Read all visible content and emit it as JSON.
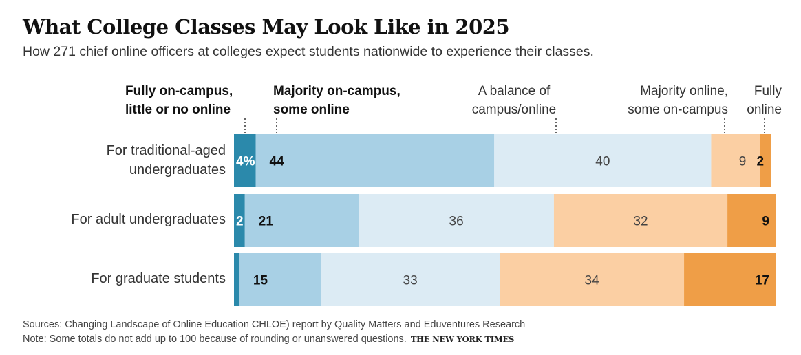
{
  "chart_data": {
    "type": "bar",
    "orientation": "horizontal-stacked-100",
    "title": "What College Classes May Look Like in 2025",
    "subtitle": "How 271 chief online officers at colleges expect students nationwide to experience their classes.",
    "categories": [
      [
        "For traditional-aged",
        "undergraduates"
      ],
      [
        "For adult undergraduates"
      ],
      [
        "For graduate students"
      ]
    ],
    "series": [
      {
        "name": "Fully on-campus, little or no online",
        "color": "#2b89ab",
        "values": [
          4,
          2,
          1
        ],
        "labels": [
          "4%",
          "2",
          ""
        ]
      },
      {
        "name": "Majority on-campus, some online",
        "color": "#a8d0e5",
        "values": [
          44,
          21,
          15
        ],
        "labels": [
          "44",
          "21",
          "15"
        ]
      },
      {
        "name": "A balance of campus/online",
        "color": "#dcebf4",
        "values": [
          40,
          36,
          33
        ],
        "labels": [
          "40",
          "36",
          "33"
        ]
      },
      {
        "name": "Majority online, some on-campus",
        "color": "#fbcfa3",
        "values": [
          9,
          32,
          34
        ],
        "labels": [
          "9",
          "32",
          "34"
        ]
      },
      {
        "name": "Fully online",
        "color": "#ef9e47",
        "values": [
          2,
          9,
          17
        ],
        "labels": [
          "2",
          "9",
          "17"
        ]
      }
    ],
    "legend_headers": [
      [
        "Fully on-campus,",
        "little or no online"
      ],
      [
        "Majority on-campus,",
        "some online"
      ],
      [
        "A balance of",
        "campus/online"
      ],
      [
        "Majority online,",
        "some on-campus"
      ],
      [
        "Fully",
        "online"
      ]
    ],
    "xlim": [
      0,
      100
    ],
    "grid": false,
    "legend_placement": "top, as column headers"
  },
  "footer": {
    "sources": "Sources: Changing Landscape of Online Education CHLOE) report by Quality Matters and Eduventures Research",
    "note": "Note: Some totals do not add up to 100 because of rounding or unanswered questions.",
    "credit": "THE NEW YORK TIMES"
  }
}
